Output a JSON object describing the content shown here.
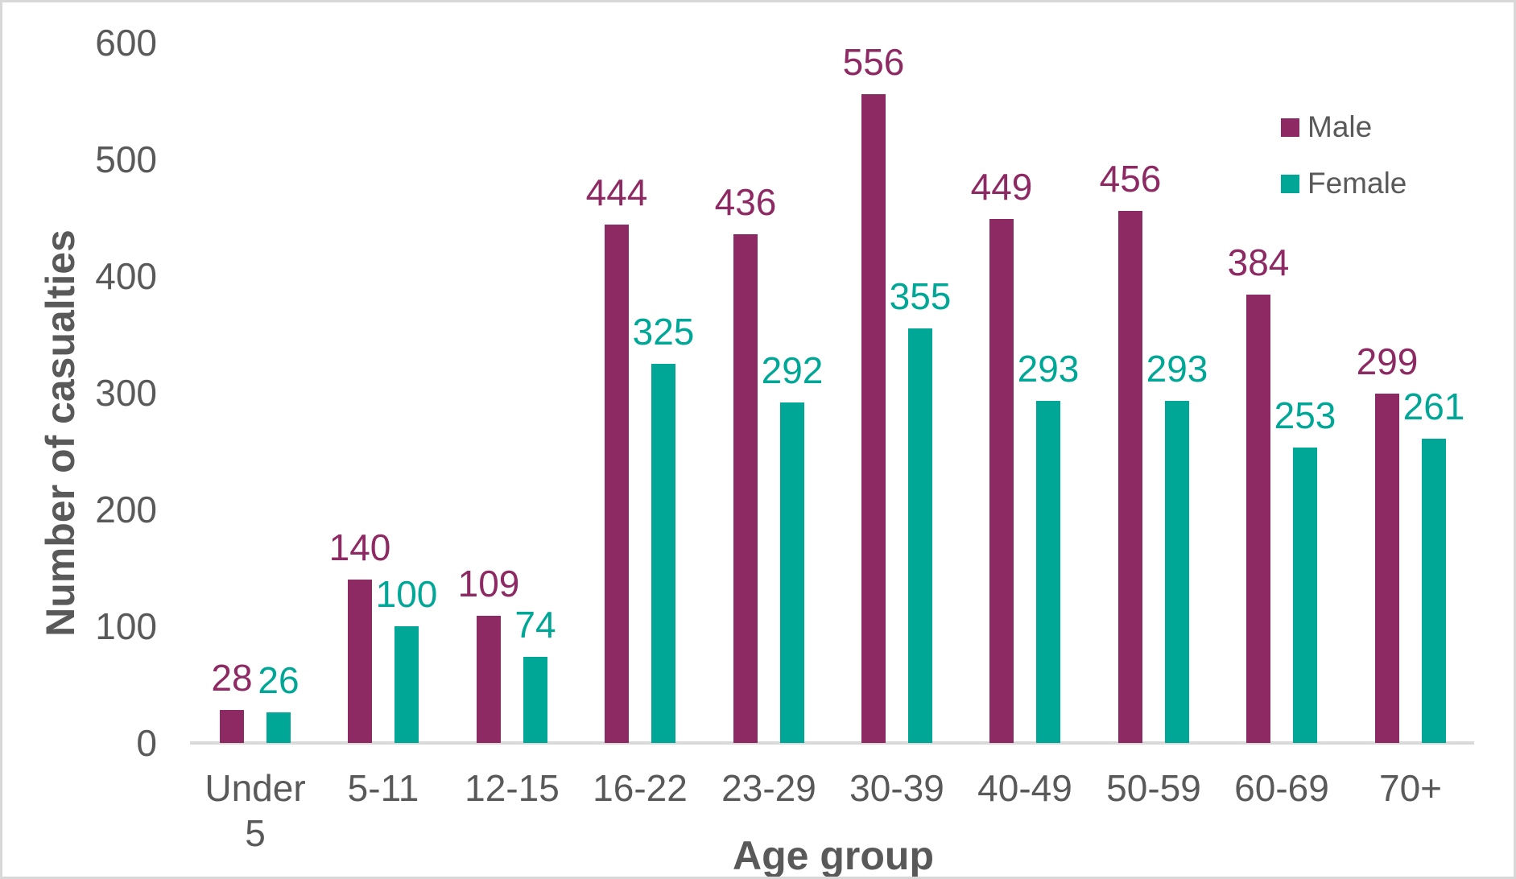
{
  "chart_data": {
    "type": "bar",
    "title": "",
    "categories": [
      "Under 5",
      "5-11",
      "12-15",
      "16-22",
      "23-29",
      "30-39",
      "40-49",
      "50-59",
      "60-69",
      "70+"
    ],
    "series": [
      {
        "name": "Male",
        "color": "#8E2A63",
        "values": [
          28,
          140,
          109,
          444,
          436,
          556,
          449,
          456,
          384,
          299
        ]
      },
      {
        "name": "Female",
        "color": "#00A796",
        "values": [
          26,
          100,
          74,
          325,
          292,
          355,
          293,
          293,
          253,
          261
        ]
      }
    ],
    "xlabel": "Age group",
    "ylabel": "Number of casualties",
    "ylim": [
      0,
      600
    ],
    "yticks": [
      0,
      100,
      200,
      300,
      400,
      500,
      600
    ],
    "grid": false,
    "legend_position": "top-right",
    "data_labels": true
  },
  "colors": {
    "axis_text": "#595959",
    "axis_line": "#D9D9D9",
    "background": "#FFFFFF",
    "border": "#D8D8D8"
  }
}
